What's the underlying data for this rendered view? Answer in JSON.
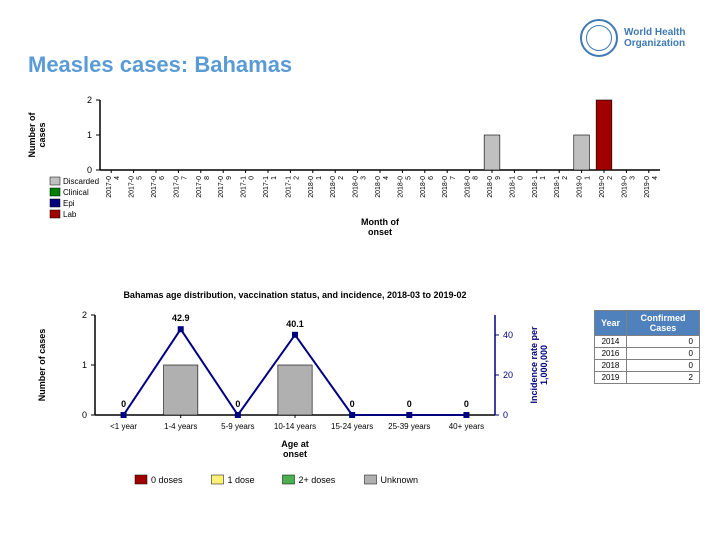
{
  "title": "Measles cases: Bahamas",
  "logo": {
    "line1": "World Health",
    "line2": "Organization"
  },
  "colors": {
    "accent": "#5b9bd5",
    "discarded": "#c0c0c0",
    "clinical": "#008000",
    "epi": "#000080",
    "lab": "#a00000",
    "axis": "#000000",
    "background": "#ffffff",
    "table_header_bg": "#4f81bd",
    "table_header_fg": "#ffffff",
    "table_border": "#808080",
    "unknown": "#b0b0b0",
    "dose2": "#4caf50",
    "dose1": "#fff176",
    "dose0": "#a00000"
  },
  "chart1": {
    "type": "bar",
    "yaxis_label": "Number of\ncases",
    "xaxis_label": "Month of\nonset",
    "ylim": [
      0,
      2
    ],
    "yticks": [
      0,
      1,
      2
    ],
    "legend": [
      "Discarded",
      "Clinical",
      "Epi",
      "Lab"
    ],
    "months": [
      "2017-04",
      "2017-05",
      "2017-06",
      "2017-07",
      "2017-08",
      "2017-09",
      "2017-10",
      "2017-11",
      "2017-12",
      "2018-01",
      "2018-02",
      "2018-03",
      "2018-04",
      "2018-05",
      "2018-06",
      "2018-07",
      "2018-08",
      "2018-09",
      "2018-10",
      "2018-11",
      "2018-12",
      "2019-01",
      "2019-02",
      "2019-03",
      "2019-04"
    ],
    "bars": [
      {
        "month": "2018-09",
        "height": 1,
        "series": "Discarded"
      },
      {
        "month": "2019-01",
        "height": 1,
        "series": "Discarded"
      },
      {
        "month": "2019-02",
        "height": 2,
        "series": "Lab"
      }
    ]
  },
  "table": {
    "columns": [
      "Year",
      "Confirmed Cases"
    ],
    "rows": [
      [
        "2014",
        "0"
      ],
      [
        "2016",
        "0"
      ],
      [
        "2018",
        "0"
      ],
      [
        "2019",
        "2"
      ]
    ]
  },
  "chart2": {
    "type": "bar+line",
    "title": "Bahamas age distribution, vaccination status, and incidence, 2018-03 to 2019-02",
    "yaxis_left_label": "Number of cases",
    "yaxis_right_label": "Incidence rate per\n1,000,000",
    "xaxis_label": "Age at\nonset",
    "ylim_left": [
      0,
      2
    ],
    "yticks_left": [
      0,
      1,
      2
    ],
    "ylim_right": [
      0,
      50
    ],
    "yticks_right": [
      0,
      20,
      40
    ],
    "line_color": "#000080",
    "categories": [
      "<1 year",
      "1-4 years",
      "5-9 years",
      "10-14 years",
      "15-24 years",
      "25-39 years",
      "40+ years"
    ],
    "bar_values": [
      0,
      1,
      0,
      1,
      0,
      0,
      0
    ],
    "bar_series": [
      "",
      "Unknown",
      "",
      "Unknown",
      "",
      "",
      ""
    ],
    "line_values": [
      0,
      42.9,
      0,
      40.1,
      0,
      0,
      0
    ],
    "line_labels": [
      "0",
      "42.9",
      "0",
      "40.1",
      "0",
      "0",
      "0"
    ],
    "legend": [
      "0 doses",
      "1 dose",
      "2+ doses",
      "Unknown"
    ]
  }
}
